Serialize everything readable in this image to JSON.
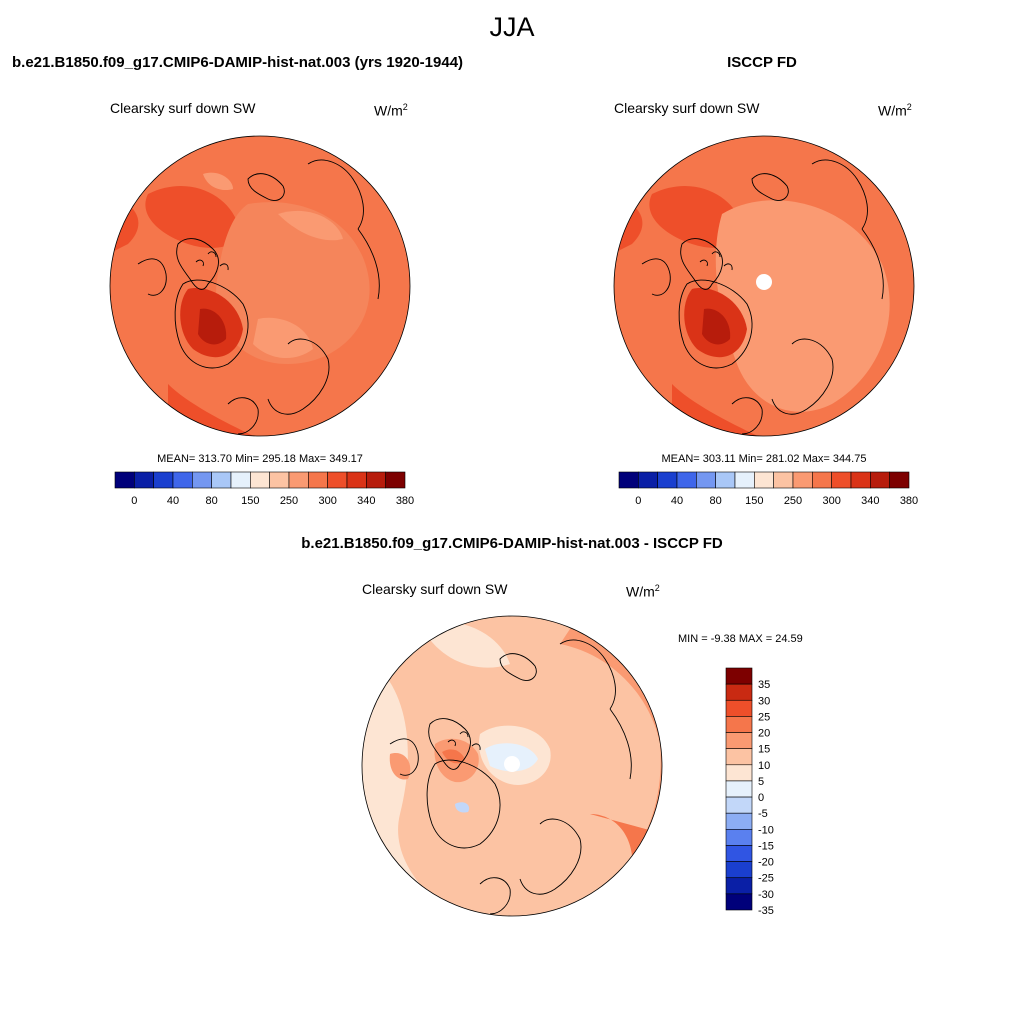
{
  "figure": {
    "season": "JJA",
    "variable": "Clearsky surf down SW",
    "units_base": "W/m",
    "units_exp": "2"
  },
  "panels": {
    "model": {
      "title": "b.e21.B1850.f09_g17.CMIP6-DAMIP-hist-nat.003 (yrs 1920-1944)",
      "stats": "MEAN= 313.70  Min= 295.18  Max= 349.17"
    },
    "obs": {
      "title": "ISCCP FD",
      "stats": "MEAN= 303.11  Min= 281.02  Max= 344.75"
    },
    "diff": {
      "title": "b.e21.B1850.f09_g17.CMIP6-DAMIP-hist-nat.003 - ISCCP FD",
      "stats": "MIN =  -9.38 MAX =  24.59"
    }
  },
  "colorbars": {
    "abs": {
      "colors": [
        "#00007a",
        "#0a1fa6",
        "#1a3fcf",
        "#3f66ea",
        "#7497f1",
        "#a9c7f7",
        "#e6f1fc",
        "#fde5d3",
        "#fcc3a3",
        "#fa9a72",
        "#f5764b",
        "#ee4f2a",
        "#da3317",
        "#b71c0c",
        "#7d0000"
      ],
      "tick_labels": [
        "0",
        "40",
        "80",
        "150",
        "250",
        "300",
        "340",
        "380"
      ]
    },
    "diff": {
      "colors": [
        "#00007a",
        "#0a1fa6",
        "#1a3fcf",
        "#3055e3",
        "#5a80ef",
        "#8cadf4",
        "#c2d7f9",
        "#e6f1fc",
        "#fde5d3",
        "#fcc3a3",
        "#fa9a72",
        "#f5764b",
        "#ee4f2a",
        "#c92a12",
        "#7d0000"
      ],
      "tick_labels": [
        "35",
        "30",
        "25",
        "20",
        "15",
        "10",
        "5",
        "0",
        "-5",
        "-10",
        "-15",
        "-20",
        "-25",
        "-30",
        "-35"
      ]
    }
  }
}
